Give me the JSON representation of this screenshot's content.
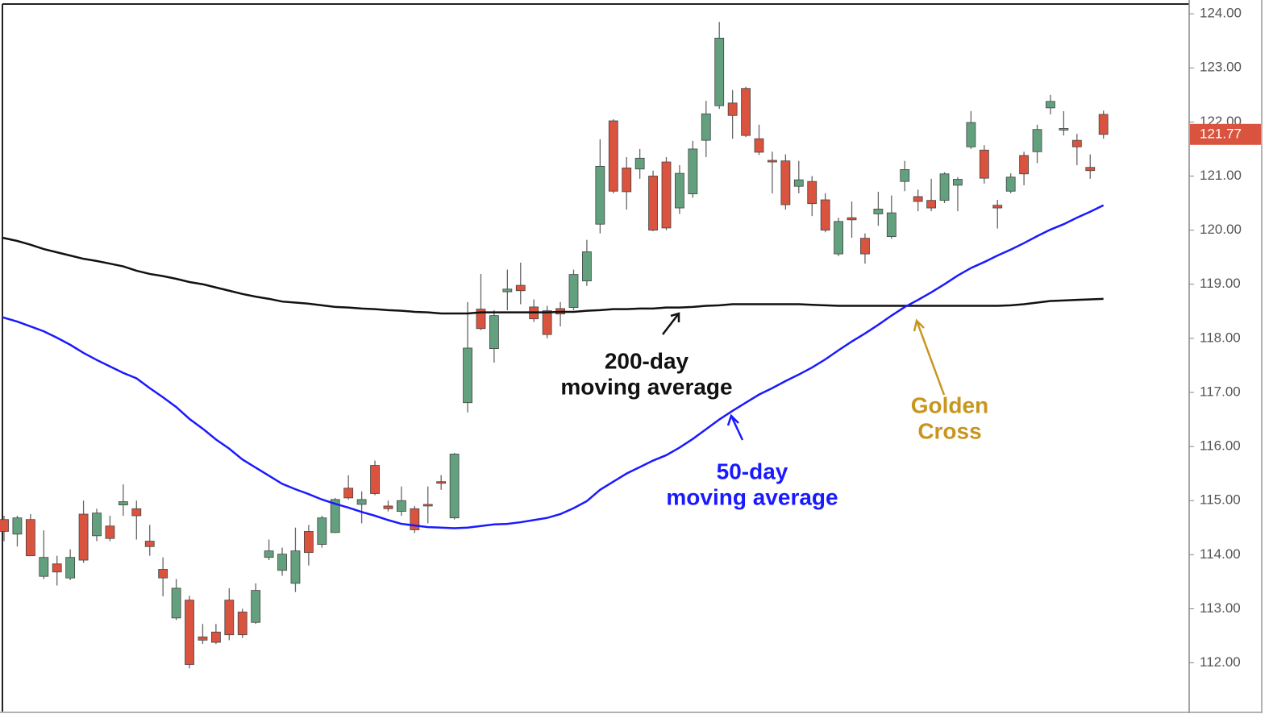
{
  "chart_data": {
    "type": "candlestick",
    "open": [
      114.65,
      114.38,
      114.65,
      113.6,
      113.83,
      113.57,
      114.75,
      114.35,
      114.53,
      114.92,
      114.85,
      114.25,
      113.73,
      112.83,
      113.16,
      112.48,
      112.57,
      113.16,
      112.94,
      112.75,
      113.95,
      113.71,
      113.47,
      114.43,
      114.19,
      114.41,
      115.23,
      114.93,
      115.65,
      114.9,
      114.8,
      114.85,
      114.93,
      115.35,
      114.68,
      116.81,
      118.54,
      117.81,
      118.86,
      118.98,
      118.58,
      118.51,
      118.55,
      118.57,
      119.06,
      120.11,
      122.02,
      121.15,
      121.13,
      121.0,
      121.26,
      120.41,
      120.67,
      121.66,
      122.3,
      122.35,
      122.62,
      121.69,
      121.29,
      121.28,
      120.81,
      120.9,
      120.56,
      119.56,
      120.23,
      119.85,
      120.3,
      119.88,
      120.9,
      120.62,
      120.55,
      120.55,
      120.83,
      121.54,
      121.48,
      120.46,
      120.72,
      121.38,
      121.45,
      122.26,
      121.85,
      121.66,
      121.16,
      122.14
    ],
    "high": [
      114.72,
      114.72,
      114.75,
      114.45,
      113.98,
      114.1,
      115.0,
      114.85,
      114.72,
      115.3,
      115.0,
      114.55,
      113.95,
      113.55,
      113.24,
      112.72,
      112.72,
      113.38,
      113.0,
      113.47,
      114.28,
      114.13,
      114.5,
      114.55,
      114.72,
      115.05,
      115.47,
      115.17,
      115.74,
      115.0,
      115.26,
      114.9,
      115.26,
      115.47,
      115.88,
      118.67,
      119.19,
      118.52,
      119.27,
      119.4,
      118.72,
      118.6,
      118.67,
      119.27,
      119.82,
      121.68,
      122.05,
      121.35,
      121.5,
      121.1,
      121.35,
      121.2,
      121.65,
      122.39,
      123.85,
      122.59,
      122.65,
      121.95,
      121.45,
      121.4,
      121.28,
      121.0,
      120.68,
      120.23,
      120.53,
      119.94,
      120.71,
      120.64,
      121.28,
      120.75,
      120.95,
      121.07,
      120.98,
      122.2,
      121.57,
      120.56,
      121.05,
      121.45,
      121.95,
      122.5,
      122.2,
      121.78,
      121.4,
      122.21
    ],
    "low": [
      114.25,
      114.15,
      113.98,
      113.55,
      113.43,
      113.53,
      113.85,
      114.25,
      114.25,
      114.72,
      114.28,
      113.98,
      113.23,
      112.79,
      111.9,
      112.35,
      112.35,
      112.42,
      112.46,
      112.72,
      113.9,
      113.61,
      113.31,
      113.8,
      114.13,
      114.4,
      115.02,
      114.58,
      115.1,
      114.8,
      114.72,
      114.4,
      114.58,
      115.2,
      114.65,
      116.63,
      118.15,
      117.55,
      118.52,
      118.63,
      118.3,
      118.0,
      118.22,
      118.52,
      118.97,
      119.94,
      120.68,
      120.38,
      120.95,
      119.98,
      120.0,
      120.3,
      120.6,
      121.35,
      122.24,
      121.69,
      121.72,
      121.39,
      120.68,
      120.38,
      120.68,
      120.26,
      119.96,
      119.52,
      119.86,
      119.38,
      120.08,
      119.84,
      120.72,
      120.35,
      120.35,
      120.5,
      120.35,
      121.5,
      120.86,
      120.03,
      120.68,
      120.83,
      121.24,
      122.14,
      121.75,
      121.2,
      120.95,
      121.69
    ],
    "close": [
      114.43,
      114.68,
      113.98,
      113.95,
      113.68,
      113.95,
      113.9,
      114.77,
      114.3,
      114.98,
      114.72,
      114.15,
      113.57,
      113.38,
      111.97,
      112.42,
      112.38,
      112.52,
      112.52,
      113.34,
      114.07,
      114.01,
      114.07,
      114.04,
      114.68,
      115.02,
      115.05,
      115.02,
      115.13,
      114.85,
      115.0,
      114.46,
      114.9,
      115.32,
      115.86,
      117.82,
      118.18,
      118.42,
      118.91,
      118.88,
      118.36,
      118.07,
      118.45,
      119.18,
      119.6,
      121.18,
      120.72,
      120.71,
      121.33,
      120.0,
      120.04,
      121.05,
      121.5,
      122.15,
      123.55,
      122.12,
      121.75,
      121.44,
      121.26,
      120.47,
      120.93,
      120.49,
      120.0,
      120.16,
      120.19,
      119.56,
      120.39,
      120.32,
      121.12,
      120.53,
      120.41,
      121.04,
      120.94,
      121.99,
      120.96,
      120.41,
      120.98,
      121.04,
      121.86,
      122.38,
      121.88,
      121.54,
      121.1,
      121.77
    ],
    "up_color": "#62a07e",
    "down_color": "#d9533f",
    "moving_averages": [
      {
        "label": [
          "200-day",
          "moving average"
        ],
        "color": "#111111",
        "values": [
          119.86,
          119.8,
          119.73,
          119.65,
          119.59,
          119.53,
          119.47,
          119.43,
          119.38,
          119.33,
          119.25,
          119.19,
          119.15,
          119.1,
          119.04,
          119.0,
          118.94,
          118.88,
          118.82,
          118.77,
          118.73,
          118.68,
          118.66,
          118.64,
          118.61,
          118.58,
          118.57,
          118.55,
          118.54,
          118.52,
          118.51,
          118.49,
          118.48,
          118.46,
          118.46,
          118.46,
          118.48,
          118.48,
          118.48,
          118.48,
          118.48,
          118.48,
          118.49,
          118.49,
          118.51,
          118.52,
          118.54,
          118.54,
          118.55,
          118.55,
          118.57,
          118.57,
          118.58,
          118.6,
          118.61,
          118.63,
          118.63,
          118.63,
          118.63,
          118.63,
          118.63,
          118.62,
          118.61,
          118.6,
          118.6,
          118.6,
          118.6,
          118.6,
          118.6,
          118.6,
          118.6,
          118.6,
          118.6,
          118.6,
          118.6,
          118.6,
          118.61,
          118.63,
          118.66,
          118.69,
          118.7,
          118.71,
          118.72,
          118.73
        ]
      },
      {
        "label": [
          "50-day",
          "moving average"
        ],
        "color": "#1a1aff",
        "values": [
          118.39,
          118.31,
          118.22,
          118.13,
          118.01,
          117.88,
          117.73,
          117.6,
          117.48,
          117.36,
          117.26,
          117.08,
          116.91,
          116.73,
          116.51,
          116.33,
          116.13,
          115.96,
          115.76,
          115.61,
          115.46,
          115.31,
          115.21,
          115.12,
          115.02,
          114.94,
          114.87,
          114.79,
          114.72,
          114.64,
          114.57,
          114.54,
          114.51,
          114.5,
          114.49,
          114.5,
          114.53,
          114.56,
          114.57,
          114.6,
          114.64,
          114.68,
          114.75,
          114.86,
          114.99,
          115.2,
          115.35,
          115.5,
          115.62,
          115.74,
          115.84,
          115.98,
          116.14,
          116.32,
          116.5,
          116.66,
          116.81,
          116.96,
          117.08,
          117.21,
          117.33,
          117.46,
          117.61,
          117.78,
          117.94,
          118.09,
          118.25,
          118.42,
          118.58,
          118.71,
          118.85,
          119.0,
          119.16,
          119.3,
          119.41,
          119.53,
          119.64,
          119.76,
          119.89,
          120.01,
          120.11,
          120.23,
          120.34,
          120.46
        ]
      }
    ],
    "annotation": {
      "text": [
        "Golden",
        "Cross"
      ],
      "color": "#c8961e"
    },
    "ylim": [
      111.1,
      124.18
    ],
    "yticks": [
      {
        "value": 112,
        "label": "112.00"
      },
      {
        "value": 113,
        "label": "113.00"
      },
      {
        "value": 114,
        "label": "114.00"
      },
      {
        "value": 115,
        "label": "115.00"
      },
      {
        "value": 116,
        "label": "116.00"
      },
      {
        "value": 117,
        "label": "117.00"
      },
      {
        "value": 118,
        "label": "118.00"
      },
      {
        "value": 119,
        "label": "119.00"
      },
      {
        "value": 120,
        "label": "120.00"
      },
      {
        "value": 121,
        "label": "121.00"
      },
      {
        "value": 122,
        "label": "122.00"
      },
      {
        "value": 123,
        "label": "123.00"
      },
      {
        "value": 124,
        "label": "124.00"
      }
    ],
    "last_price_color": "#d9533f"
  }
}
